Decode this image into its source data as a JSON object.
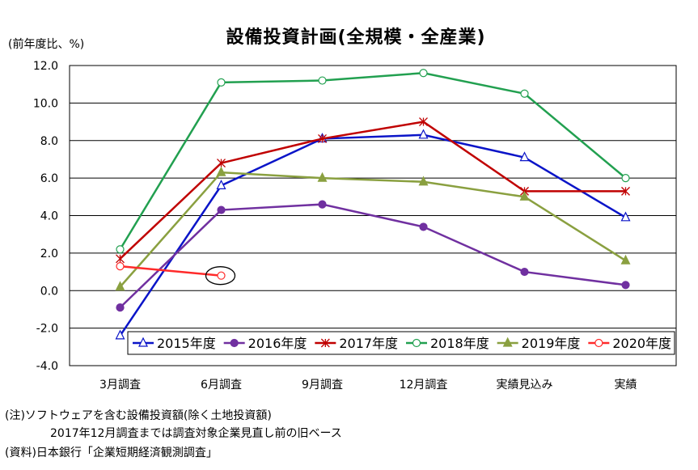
{
  "title": "設備投資計画(全規模・全産業)",
  "unit_label": "(前年度比、%)",
  "notes": [
    "(注)ソフトウェアを含む設備投資額(除く土地投資額)",
    "2017年12月調査までは調査対象企業見直し前の旧ベース",
    "(資料)日本銀行「企業短期経済観測調査」"
  ],
  "chart_data": {
    "type": "line",
    "title": "設備投資計画(全規模・全産業)",
    "ylabel": "(前年度比、%)",
    "xlabel": "",
    "categories": [
      "3月調査",
      "6月調査",
      "9月調査",
      "12月調査",
      "実績見込み",
      "実績"
    ],
    "ylim": [
      -4.0,
      12.0
    ],
    "yticks": [
      -4.0,
      -2.0,
      0.0,
      2.0,
      4.0,
      6.0,
      8.0,
      10.0,
      12.0
    ],
    "ytick_labels": [
      "-4.0",
      "-2.0",
      "0.0",
      "2.0",
      "4.0",
      "6.0",
      "8.0",
      "10.0",
      "12.0"
    ],
    "grid": true,
    "legend_position": "bottom-right inside plot",
    "series": [
      {
        "name": "2015年度",
        "color": "#0a14c8",
        "marker": "open-triangle",
        "values": [
          -2.4,
          5.6,
          8.1,
          8.3,
          7.1,
          3.9
        ]
      },
      {
        "name": "2016年度",
        "color": "#7030a0",
        "marker": "filled-circle",
        "values": [
          -0.9,
          4.3,
          4.6,
          3.4,
          1.0,
          0.3
        ]
      },
      {
        "name": "2017年度",
        "color": "#c00000",
        "marker": "star-x",
        "values": [
          1.7,
          6.8,
          8.1,
          9.0,
          5.3,
          5.3
        ]
      },
      {
        "name": "2018年度",
        "color": "#22a050",
        "marker": "open-circle",
        "values": [
          2.2,
          11.1,
          11.2,
          11.6,
          10.5,
          6.0
        ]
      },
      {
        "name": "2019年度",
        "color": "#8aa040",
        "marker": "filled-triangle",
        "values": [
          0.2,
          6.3,
          6.0,
          5.8,
          5.0,
          1.6
        ]
      },
      {
        "name": "2020年度",
        "color": "#ff2a2a",
        "marker": "open-circle",
        "values": [
          1.3,
          0.8,
          null,
          null,
          null,
          null
        ]
      }
    ],
    "highlight": {
      "series": "2020年度",
      "category": "6月調査",
      "shape": "ellipse"
    }
  }
}
